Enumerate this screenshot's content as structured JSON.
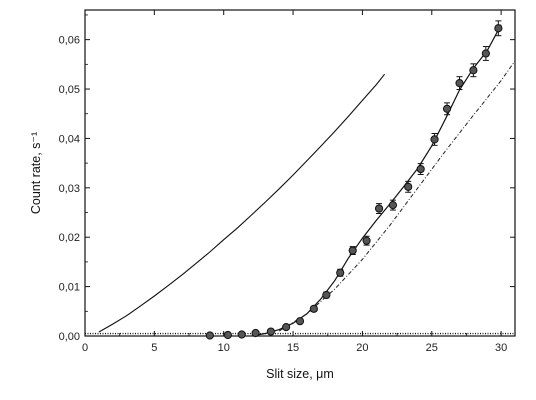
{
  "chart_data": {
    "type": "scatter",
    "xlabel": "Slit size, μm",
    "ylabel": "Count rate, s⁻¹",
    "xlim": [
      0,
      31
    ],
    "ylim": [
      0,
      0.066
    ],
    "x_ticks": [
      0,
      5,
      10,
      15,
      20,
      25,
      30
    ],
    "x_tick_labels": [
      "0",
      "5",
      "10",
      "15",
      "20",
      "25",
      "30"
    ],
    "y_ticks": [
      0,
      0.01,
      0.02,
      0.03,
      0.04,
      0.05,
      0.06
    ],
    "y_tick_labels": [
      "0,00",
      "0,01",
      "0,02",
      "0,03",
      "0,04",
      "0,05",
      "0,06"
    ],
    "grid": false,
    "series": [
      {
        "style": "markers-with-errorbars",
        "x": [
          9.0,
          10.3,
          11.3,
          12.3,
          13.4,
          14.5,
          15.5,
          16.5,
          17.4,
          18.4,
          19.3,
          20.3,
          21.2,
          22.2,
          23.3,
          24.2,
          25.2,
          26.1,
          27.0,
          28.0,
          28.9,
          29.8
        ],
        "y": [
          0.0001,
          0.0002,
          0.0003,
          0.0006,
          0.0009,
          0.0018,
          0.003,
          0.0055,
          0.0083,
          0.0128,
          0.0173,
          0.0193,
          0.0258,
          0.0265,
          0.0302,
          0.0338,
          0.0398,
          0.046,
          0.0512,
          0.0538,
          0.0572,
          0.0623
        ],
        "err": [
          0.0003,
          0.0003,
          0.0003,
          0.0003,
          0.0004,
          0.0004,
          0.0004,
          0.0005,
          0.0006,
          0.0007,
          0.0008,
          0.0009,
          0.001,
          0.001,
          0.0011,
          0.0011,
          0.0012,
          0.0012,
          0.0013,
          0.0013,
          0.0014,
          0.0015
        ]
      },
      {
        "style": "solid-fit",
        "x": [
          12.0,
          13.0,
          14.0,
          15.0,
          16.0,
          17.0,
          18.0,
          19.0,
          20.0,
          21.0,
          22.0,
          23.0,
          24.0,
          25.0,
          26.0,
          27.0,
          28.0,
          29.0,
          30.0
        ],
        "y": [
          0.0,
          0.0005,
          0.0013,
          0.0026,
          0.0045,
          0.0075,
          0.0112,
          0.0158,
          0.0198,
          0.0234,
          0.0268,
          0.0303,
          0.034,
          0.0385,
          0.044,
          0.0498,
          0.0542,
          0.0578,
          0.063
        ]
      },
      {
        "style": "dashed",
        "x": [
          14.0,
          16.0,
          18.0,
          20.0,
          22.0,
          24.0,
          26.0,
          28.0,
          30.0,
          31.0
        ],
        "y": [
          0.001,
          0.0045,
          0.0095,
          0.0155,
          0.0225,
          0.03,
          0.0375,
          0.0447,
          0.0517,
          0.0557
        ]
      },
      {
        "style": "solid-thin",
        "x": [
          1.0,
          2.0,
          3.0,
          4.0,
          5.0,
          6.0,
          7.0,
          8.0,
          9.0,
          10.0,
          11.0,
          12.0,
          13.0,
          14.0,
          15.0,
          16.0,
          17.0,
          18.0,
          19.0,
          20.0,
          21.0,
          21.6
        ],
        "y": [
          0.0008,
          0.0024,
          0.0041,
          0.0061,
          0.0081,
          0.0102,
          0.0124,
          0.0147,
          0.017,
          0.0195,
          0.0219,
          0.0245,
          0.0271,
          0.0298,
          0.0326,
          0.0355,
          0.0384,
          0.0414,
          0.0445,
          0.0477,
          0.0509,
          0.053
        ]
      },
      {
        "style": "baseline-dotted",
        "x": [
          0,
          31
        ],
        "y": [
          0.0005,
          0.0005
        ]
      }
    ]
  }
}
